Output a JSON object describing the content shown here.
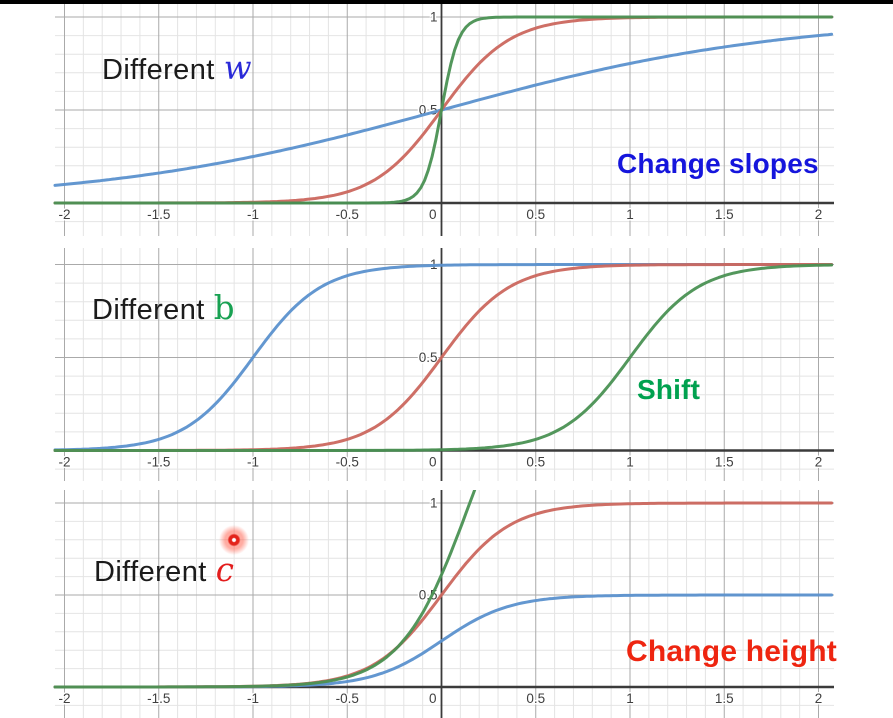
{
  "page": {
    "background": "#ffffff",
    "top_border_color": "#000000",
    "pointer_dot_color": "#e3241b"
  },
  "chart_data": [
    {
      "type": "line",
      "title": {
        "prefix": "Different",
        "var": "w",
        "var_color": "#2a2ad8",
        "var_style": "italic"
      },
      "annotation": {
        "text": "Change slopes",
        "color": "#1515dc"
      },
      "curve_model": "y = c / (1 + exp(-w*(x-b)))",
      "xlim": [
        -2.05,
        2.08
      ],
      "ylim": [
        -0.18,
        1.07
      ],
      "x_ticks": {
        "values": [
          -2,
          -1.5,
          -1,
          -0.5,
          0,
          0.5,
          1,
          1.5,
          2
        ],
        "labels": [
          "-2",
          "-1.5",
          "-1",
          "-0.5",
          "0",
          "0.5",
          "1",
          "1.5",
          "2"
        ]
      },
      "y_ticks": {
        "values": [
          0.5,
          1
        ],
        "labels": [
          "0.5",
          "1"
        ]
      },
      "grid": {
        "minor_step": 0.1,
        "major_step": 0.5,
        "on": true
      },
      "series": [
        {
          "name": "blue-small-w-shallow",
          "color": "#5b91cd",
          "w": 1.1,
          "b": 0,
          "c": 1
        },
        {
          "name": "red-medium-w",
          "color": "#cb675e",
          "w": 5.5,
          "b": 0,
          "c": 1
        },
        {
          "name": "green-large-w-steep",
          "color": "#4a9153",
          "w": 22,
          "b": 0,
          "c": 1
        }
      ]
    },
    {
      "type": "line",
      "title": {
        "prefix": "Different",
        "var": "b",
        "var_color": "#18a152",
        "var_style": "normal"
      },
      "annotation": {
        "text": "Shift",
        "color": "#00a14f"
      },
      "curve_model": "y = c / (1 + exp(-w*(x-b)))",
      "xlim": [
        -2.05,
        2.08
      ],
      "ylim": [
        -0.16,
        1.09
      ],
      "x_ticks": {
        "values": [
          -2,
          -1.5,
          -1,
          -0.5,
          0,
          0.5,
          1,
          1.5,
          2
        ],
        "labels": [
          "-2",
          "-1.5",
          "-1",
          "-0.5",
          "0",
          "0.5",
          "1",
          "1.5",
          "2"
        ]
      },
      "y_ticks": {
        "values": [
          0.5,
          1
        ],
        "labels": [
          "0.5",
          "1"
        ]
      },
      "grid": {
        "minor_step": 0.1,
        "major_step": 0.5,
        "on": true
      },
      "series": [
        {
          "name": "blue-shift-left-b-minus1",
          "color": "#5b91cd",
          "w": 5.5,
          "b": -1,
          "c": 1
        },
        {
          "name": "red-center-b-0",
          "color": "#cb675e",
          "w": 5.5,
          "b": 0,
          "c": 1
        },
        {
          "name": "green-shift-right-b-plus1",
          "color": "#4a9153",
          "w": 5.5,
          "b": 1,
          "c": 1
        }
      ]
    },
    {
      "type": "line",
      "title": {
        "prefix": "Different",
        "var": "c",
        "var_color": "#e31d1d",
        "var_style": "italic"
      },
      "annotation": {
        "text": "Change height",
        "color": "#ee2510"
      },
      "curve_model": "y = c / (1 + exp(-w*(x-b)))",
      "xlim": [
        -2.05,
        2.08
      ],
      "ylim": [
        -0.17,
        1.07
      ],
      "x_ticks": {
        "values": [
          -2,
          -1.5,
          -1,
          -0.5,
          0,
          0.5,
          1,
          1.5,
          2
        ],
        "labels": [
          "-2",
          "-1.5",
          "-1",
          "-0.5",
          "0",
          "0.5",
          "1",
          "1.5",
          "2"
        ]
      },
      "y_ticks": {
        "values": [
          0.5,
          1
        ],
        "labels": [
          "0.5",
          "1"
        ]
      },
      "grid": {
        "minor_step": 0.1,
        "major_step": 0.5,
        "on": true
      },
      "series": [
        {
          "name": "blue-height-0.5",
          "color": "#5b91cd",
          "w": 5.5,
          "b": 0,
          "c": 0.5
        },
        {
          "name": "red-height-1",
          "color": "#cb675e",
          "w": 5.5,
          "b": 0,
          "c": 1
        },
        {
          "name": "green-height-2-clipped",
          "color": "#4a9153",
          "w": 5.5,
          "b": 0.15,
          "c": 2
        }
      ]
    }
  ]
}
